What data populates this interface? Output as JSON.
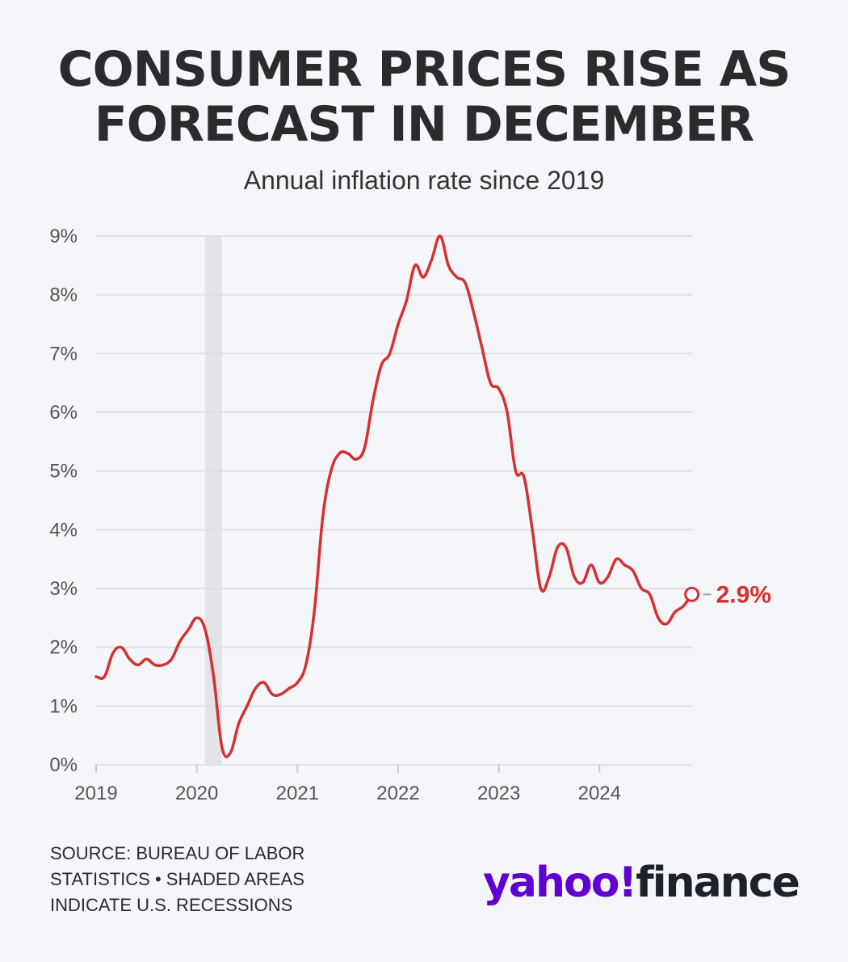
{
  "title": {
    "line1": "CONSUMER PRICES RISE AS",
    "line2": "FORECAST IN DECEMBER"
  },
  "subtitle": "Annual inflation rate since 2019",
  "source": {
    "line1": "SOURCE: BUREAU OF LABOR",
    "line2": "STATISTICS • SHADED AREAS",
    "line3": "INDICATE U.S. RECESSIONS"
  },
  "logo": {
    "brand": "yahoo!",
    "product": "finance"
  },
  "colors": {
    "line": "#d63031",
    "grid": "#dcdfe4",
    "recession": "#e2e4e8",
    "axis_text": "#555555",
    "logo_purple": "#6001d2"
  },
  "chart_data": {
    "type": "line",
    "title": "CONSUMER PRICES RISE AS FORECAST IN DECEMBER",
    "subtitle": "Annual inflation rate since 2019",
    "ylim": [
      0,
      9
    ],
    "y_ticks": [
      "0%",
      "1%",
      "2%",
      "3%",
      "4%",
      "5%",
      "6%",
      "7%",
      "8%",
      "9%"
    ],
    "xlim": [
      2019,
      2024.92
    ],
    "x_ticks": [
      "2019",
      "2020",
      "2021",
      "2022",
      "2023",
      "2024"
    ],
    "grid": true,
    "recession_shading": [
      [
        2020.08,
        2020.25
      ]
    ],
    "end_label": "2.9%",
    "series": [
      {
        "x": [
          2019.0,
          2019.083,
          2019.167,
          2019.25,
          2019.333,
          2019.417,
          2019.5,
          2019.583,
          2019.667,
          2019.75,
          2019.833,
          2019.917,
          2020.0,
          2020.083,
          2020.167,
          2020.25,
          2020.333,
          2020.417,
          2020.5,
          2020.583,
          2020.667,
          2020.75,
          2020.833,
          2020.917,
          2021.0,
          2021.083,
          2021.167,
          2021.25,
          2021.333,
          2021.417,
          2021.5,
          2021.583,
          2021.667,
          2021.75,
          2021.833,
          2021.917,
          2022.0,
          2022.083,
          2022.167,
          2022.25,
          2022.333,
          2022.417,
          2022.5,
          2022.583,
          2022.667,
          2022.75,
          2022.833,
          2022.917,
          2023.0,
          2023.083,
          2023.167,
          2023.25,
          2023.333,
          2023.417,
          2023.5,
          2023.583,
          2023.667,
          2023.75,
          2023.833,
          2023.917,
          2024.0,
          2024.083,
          2024.167,
          2024.25,
          2024.333,
          2024.417,
          2024.5,
          2024.583,
          2024.667,
          2024.75,
          2024.833,
          2024.917
        ],
        "values": [
          1.5,
          1.5,
          1.9,
          2.0,
          1.8,
          1.7,
          1.8,
          1.7,
          1.7,
          1.8,
          2.1,
          2.3,
          2.5,
          2.3,
          1.5,
          0.3,
          0.2,
          0.7,
          1.0,
          1.3,
          1.4,
          1.2,
          1.2,
          1.3,
          1.4,
          1.7,
          2.6,
          4.2,
          5.0,
          5.3,
          5.3,
          5.2,
          5.4,
          6.2,
          6.8,
          7.0,
          7.5,
          7.9,
          8.5,
          8.3,
          8.6,
          9.0,
          8.5,
          8.3,
          8.2,
          7.7,
          7.1,
          6.5,
          6.4,
          6.0,
          5.0,
          4.9,
          4.0,
          3.0,
          3.2,
          3.7,
          3.7,
          3.2,
          3.1,
          3.4,
          3.1,
          3.2,
          3.5,
          3.4,
          3.3,
          3.0,
          2.9,
          2.5,
          2.4,
          2.6,
          2.7,
          2.9
        ]
      }
    ]
  }
}
